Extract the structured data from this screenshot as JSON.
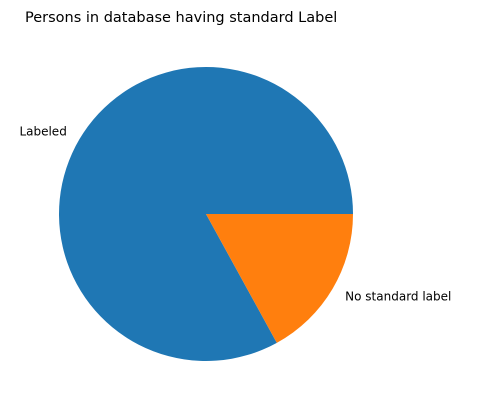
{
  "chart_data": {
    "type": "pie",
    "title": "Persons in database having standard Label",
    "labels": [
      "Labeled",
      "No standard label"
    ],
    "values": [
      83,
      17
    ],
    "colors": [
      "#1f77b4",
      "#ff7f0e"
    ],
    "start_angle_deg": 0,
    "direction": "counterclockwise",
    "legend": "none"
  }
}
